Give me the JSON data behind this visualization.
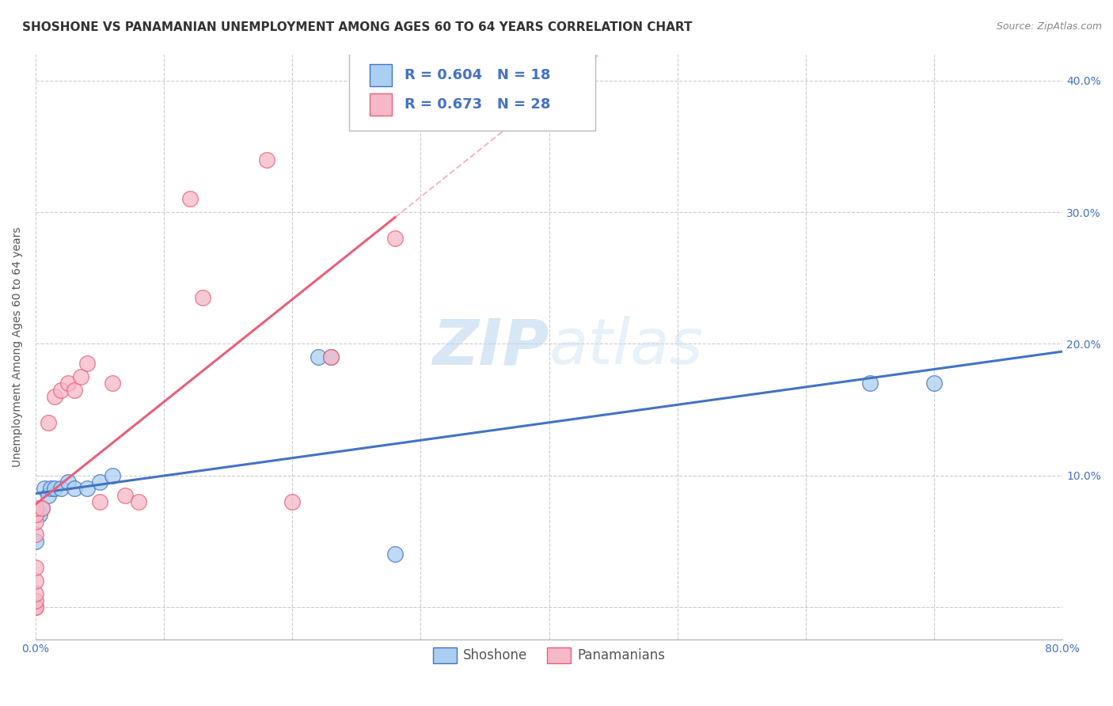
{
  "title": "SHOSHONE VS PANAMANIAN UNEMPLOYMENT AMONG AGES 60 TO 64 YEARS CORRELATION CHART",
  "source": "Source: ZipAtlas.com",
  "ylabel": "Unemployment Among Ages 60 to 64 years",
  "xlim": [
    0.0,
    0.8
  ],
  "ylim": [
    -0.025,
    0.42
  ],
  "x_ticks": [
    0.0,
    0.1,
    0.2,
    0.3,
    0.4,
    0.5,
    0.6,
    0.7,
    0.8
  ],
  "y_ticks": [
    0.0,
    0.1,
    0.2,
    0.3,
    0.4
  ],
  "watermark_zip": "ZIP",
  "watermark_atlas": "atlas",
  "shoshone_R": "0.604",
  "shoshone_N": "18",
  "panamanian_R": "0.673",
  "panamanian_N": "28",
  "shoshone_color": "#aacff0",
  "panamanian_color": "#f5b8c8",
  "shoshone_line_color": "#4472c4",
  "panamanian_line_color": "#e8607a",
  "shoshone_x": [
    0.0,
    0.003,
    0.005,
    0.007,
    0.01,
    0.012,
    0.015,
    0.02,
    0.025,
    0.03,
    0.04,
    0.05,
    0.06,
    0.22,
    0.23,
    0.28,
    0.65,
    0.7
  ],
  "shoshone_y": [
    0.05,
    0.07,
    0.075,
    0.09,
    0.085,
    0.09,
    0.09,
    0.09,
    0.095,
    0.09,
    0.09,
    0.095,
    0.1,
    0.19,
    0.19,
    0.04,
    0.17,
    0.17
  ],
  "panamanian_x": [
    0.0,
    0.0,
    0.0,
    0.0,
    0.0,
    0.0,
    0.0,
    0.0,
    0.0,
    0.0,
    0.005,
    0.01,
    0.015,
    0.02,
    0.025,
    0.03,
    0.035,
    0.04,
    0.05,
    0.06,
    0.07,
    0.08,
    0.12,
    0.13,
    0.18,
    0.2,
    0.23,
    0.28
  ],
  "panamanian_y": [
    0.0,
    0.0,
    0.005,
    0.01,
    0.02,
    0.03,
    0.055,
    0.065,
    0.07,
    0.075,
    0.075,
    0.14,
    0.16,
    0.165,
    0.17,
    0.165,
    0.175,
    0.185,
    0.08,
    0.17,
    0.085,
    0.08,
    0.31,
    0.235,
    0.34,
    0.08,
    0.19,
    0.28
  ],
  "background_color": "#ffffff",
  "grid_color": "#cccccc",
  "title_fontsize": 11,
  "axis_label_fontsize": 10,
  "tick_fontsize": 10
}
